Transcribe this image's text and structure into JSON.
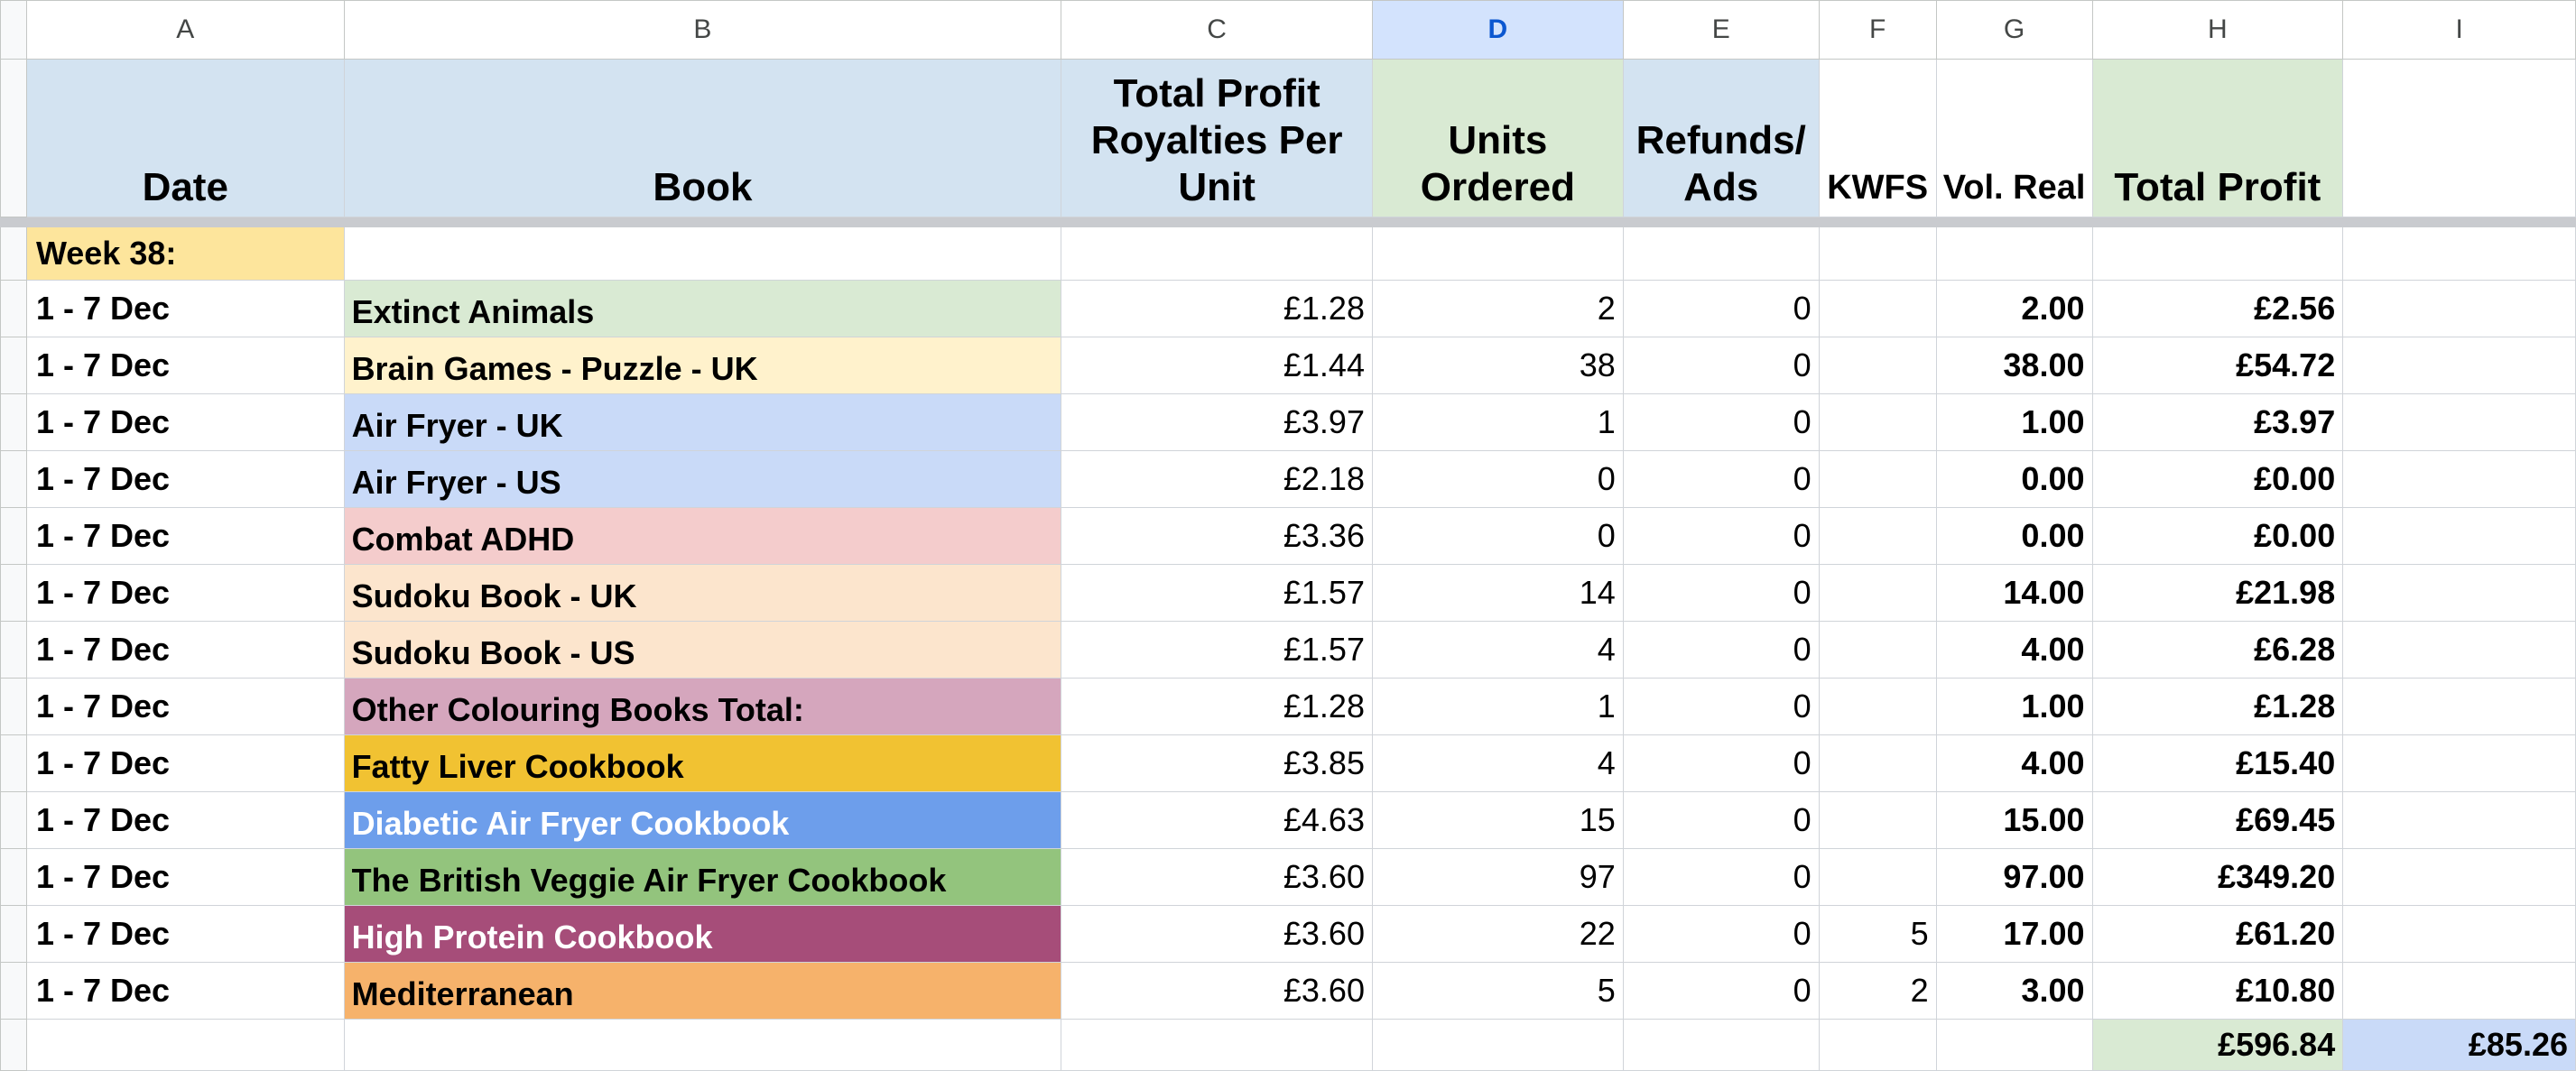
{
  "column_letters": [
    "A",
    "B",
    "C",
    "D",
    "E",
    "F",
    "G",
    "H",
    "I"
  ],
  "selected_column": "D",
  "headers": {
    "date": "Date",
    "book": "Book",
    "royalty": "Total Profit Royalties Per Unit",
    "units": "Units Ordered",
    "refunds": "Refunds/ Ads",
    "kwfs": "KWFS",
    "vol": "Vol. Real",
    "profit": "Total Profit",
    "i": ""
  },
  "week_label": "Week 38:",
  "rows": [
    {
      "date": "1 - 7 Dec",
      "book": "Extinct Animals",
      "book_color": "#d9ead3",
      "book_text_color": "#000000",
      "royalty": "£1.28",
      "units": "2",
      "refunds": "0",
      "kwfs": "",
      "vol": "2.00",
      "profit": "£2.56"
    },
    {
      "date": "1 - 7 Dec",
      "book": "Brain Games - Puzzle - UK",
      "book_color": "#fff2cc",
      "book_text_color": "#000000",
      "royalty": "£1.44",
      "units": "38",
      "refunds": "0",
      "kwfs": "",
      "vol": "38.00",
      "profit": "£54.72"
    },
    {
      "date": "1 - 7 Dec",
      "book": "Air Fryer - UK",
      "book_color": "#c9daf8",
      "book_text_color": "#000000",
      "royalty": "£3.97",
      "units": "1",
      "refunds": "0",
      "kwfs": "",
      "vol": "1.00",
      "profit": "£3.97"
    },
    {
      "date": "1 - 7 Dec",
      "book": "Air Fryer - US",
      "book_color": "#c9daf8",
      "book_text_color": "#000000",
      "royalty": "£2.18",
      "units": "0",
      "refunds": "0",
      "kwfs": "",
      "vol": "0.00",
      "profit": "£0.00"
    },
    {
      "date": "1 - 7 Dec",
      "book": "Combat ADHD",
      "book_color": "#f4cccc",
      "book_text_color": "#000000",
      "royalty": "£3.36",
      "units": "0",
      "refunds": "0",
      "kwfs": "",
      "vol": "0.00",
      "profit": "£0.00"
    },
    {
      "date": "1 - 7 Dec",
      "book": "Sudoku Book - UK",
      "book_color": "#fce5cd",
      "book_text_color": "#000000",
      "royalty": "£1.57",
      "units": "14",
      "refunds": "0",
      "kwfs": "",
      "vol": "14.00",
      "profit": "£21.98"
    },
    {
      "date": "1 - 7 Dec",
      "book": "Sudoku Book - US",
      "book_color": "#fce5cd",
      "book_text_color": "#000000",
      "royalty": "£1.57",
      "units": "4",
      "refunds": "0",
      "kwfs": "",
      "vol": "4.00",
      "profit": "£6.28"
    },
    {
      "date": "1 - 7 Dec",
      "book": "Other Colouring Books Total:",
      "book_color": "#d5a6bd",
      "book_text_color": "#000000",
      "royalty": "£1.28",
      "units": "1",
      "refunds": "0",
      "kwfs": "",
      "vol": "1.00",
      "profit": "£1.28"
    },
    {
      "date": "1 - 7 Dec",
      "book": "Fatty Liver Cookbook",
      "book_color": "#f1c232",
      "book_text_color": "#000000",
      "royalty": "£3.85",
      "units": "4",
      "refunds": "0",
      "kwfs": "",
      "vol": "4.00",
      "profit": "£15.40"
    },
    {
      "date": "1 - 7 Dec",
      "book": "Diabetic Air Fryer Cookbook",
      "book_color": "#6d9eeb",
      "book_text_color": "#ffffff",
      "royalty": "£4.63",
      "units": "15",
      "refunds": "0",
      "kwfs": "",
      "vol": "15.00",
      "profit": "£69.45"
    },
    {
      "date": "1 - 7 Dec",
      "book": "The British Veggie Air Fryer Cookbook",
      "book_color": "#93c47d",
      "book_text_color": "#000000",
      "royalty": "£3.60",
      "units": "97",
      "refunds": "0",
      "kwfs": "",
      "vol": "97.00",
      "profit": "£349.20"
    },
    {
      "date": "1 - 7 Dec",
      "book": "High Protein Cookbook",
      "book_color": "#a64d79",
      "book_text_color": "#ffffff",
      "royalty": "£3.60",
      "units": "22",
      "refunds": "0",
      "kwfs": "5",
      "vol": "17.00",
      "profit": "£61.20"
    },
    {
      "date": "1 - 7 Dec",
      "book": "Mediterranean",
      "book_color": "#f6b26b",
      "book_text_color": "#000000",
      "royalty": "£3.60",
      "units": "5",
      "refunds": "0",
      "kwfs": "2",
      "vol": "3.00",
      "profit": "£10.80"
    }
  ],
  "totals": {
    "profit": "£596.84",
    "i": "£85.26"
  },
  "colors": {
    "header_blue": "#d3e3f1",
    "header_green": "#d9ead3",
    "week_yellow": "#fde59c",
    "selected_col": "#d3e3fd",
    "total_blue": "#c9daf8"
  }
}
